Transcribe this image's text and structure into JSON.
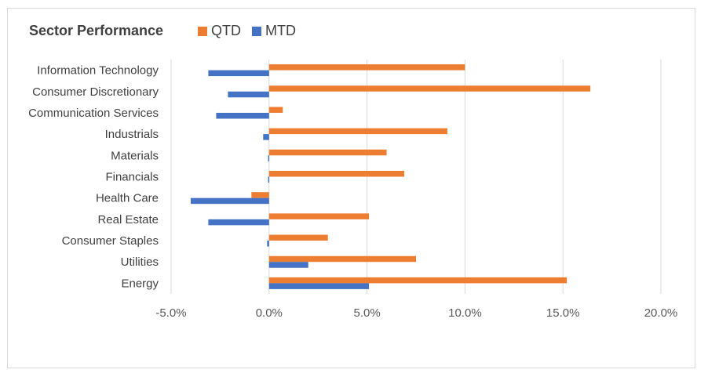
{
  "chart_data": {
    "type": "bar",
    "orientation": "horizontal",
    "title": "Sector Performance",
    "categories": [
      "Information Technology",
      "Consumer Discretionary",
      "Communication Services",
      "Industrials",
      "Materials",
      "Financials",
      "Health Care",
      "Real Estate",
      "Consumer Staples",
      "Utilities",
      "Energy"
    ],
    "series": [
      {
        "name": "QTD",
        "color": "#ED7D31",
        "values": [
          10.0,
          16.4,
          0.7,
          9.1,
          6.0,
          6.9,
          -0.9,
          5.1,
          3.0,
          7.5,
          15.2
        ]
      },
      {
        "name": "MTD",
        "color": "#4472C4",
        "values": [
          -3.1,
          -2.1,
          -2.7,
          -0.3,
          -0.05,
          -0.05,
          -4.0,
          -3.1,
          -0.1,
          2.0,
          5.1
        ]
      }
    ],
    "xlim": [
      -5,
      20
    ],
    "xticks": [
      -5,
      0,
      5,
      10,
      15,
      20
    ],
    "xtick_labels": [
      "-5.0%",
      "0.0%",
      "5.0%",
      "10.0%",
      "15.0%",
      "20.0%"
    ],
    "grid": "vertical",
    "legend": "top"
  }
}
